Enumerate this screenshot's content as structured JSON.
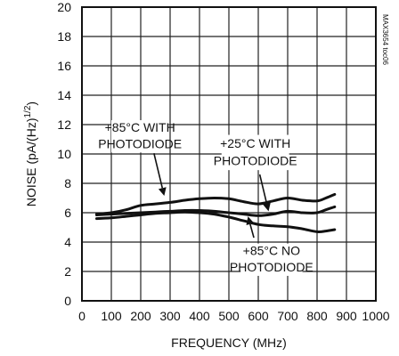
{
  "chart_data": {
    "type": "line",
    "xlabel": "FREQUENCY (MHz)",
    "ylabel": "NOISE (pA/(Hz)",
    "ylabel_sup": "1/2",
    "ylabel_tail": ")",
    "xlim": [
      0,
      1000
    ],
    "ylim": [
      0,
      20
    ],
    "x_ticks": [
      0,
      100,
      200,
      300,
      400,
      500,
      600,
      700,
      800,
      900,
      1000
    ],
    "y_ticks": [
      0,
      2,
      4,
      6,
      8,
      10,
      12,
      14,
      16,
      18,
      20
    ],
    "grid": true,
    "side_code": "MAX3654 toc06",
    "series": [
      {
        "x": [
          50,
          100,
          150,
          200,
          250,
          300,
          350,
          400,
          450,
          500,
          550,
          600,
          650,
          700,
          750,
          800,
          830,
          860
        ],
        "y": [
          5.9,
          6.0,
          6.2,
          6.5,
          6.6,
          6.7,
          6.85,
          6.95,
          7.0,
          6.95,
          6.75,
          6.6,
          6.8,
          7.0,
          6.85,
          6.8,
          7.0,
          7.25
        ]
      },
      {
        "x": [
          50,
          100,
          150,
          200,
          250,
          300,
          350,
          400,
          450,
          500,
          550,
          600,
          650,
          700,
          750,
          800,
          830,
          860
        ],
        "y": [
          5.85,
          5.9,
          5.95,
          6.0,
          6.05,
          6.1,
          6.15,
          6.15,
          6.1,
          6.0,
          5.9,
          5.8,
          5.9,
          6.1,
          6.0,
          6.0,
          6.2,
          6.4
        ]
      },
      {
        "x": [
          50,
          100,
          150,
          200,
          250,
          300,
          350,
          400,
          450,
          500,
          550,
          600,
          650,
          700,
          750,
          800,
          830,
          860
        ],
        "y": [
          5.6,
          5.65,
          5.75,
          5.85,
          5.95,
          6.0,
          6.05,
          6.0,
          5.9,
          5.7,
          5.45,
          5.2,
          5.1,
          5.05,
          4.9,
          4.7,
          4.75,
          4.85
        ]
      }
    ],
    "annotations": [
      {
        "lines": [
          "+85°C WITH",
          "PHOTODIODE"
        ],
        "box_x": [
          100,
          295
        ],
        "box_y": [
          10.1,
          12.3
        ],
        "arrow_from": [
          245,
          10.05
        ],
        "arrow_to": [
          280,
          7.15
        ]
      },
      {
        "lines": [
          "+25°C WITH",
          "PHOTODIODE"
        ],
        "box_x": [
          475,
          705
        ],
        "box_y": [
          8.9,
          11.3
        ],
        "arrow_from": [
          605,
          8.6
        ],
        "arrow_to": [
          635,
          6.1
        ]
      },
      {
        "lines": [
          "+85°C NO",
          "PHOTODIODE"
        ],
        "box_x": [
          540,
          750
        ],
        "box_y": [
          1.7,
          3.9
        ],
        "arrow_from": [
          585,
          4.3
        ],
        "arrow_to": [
          565,
          5.75
        ]
      }
    ]
  }
}
